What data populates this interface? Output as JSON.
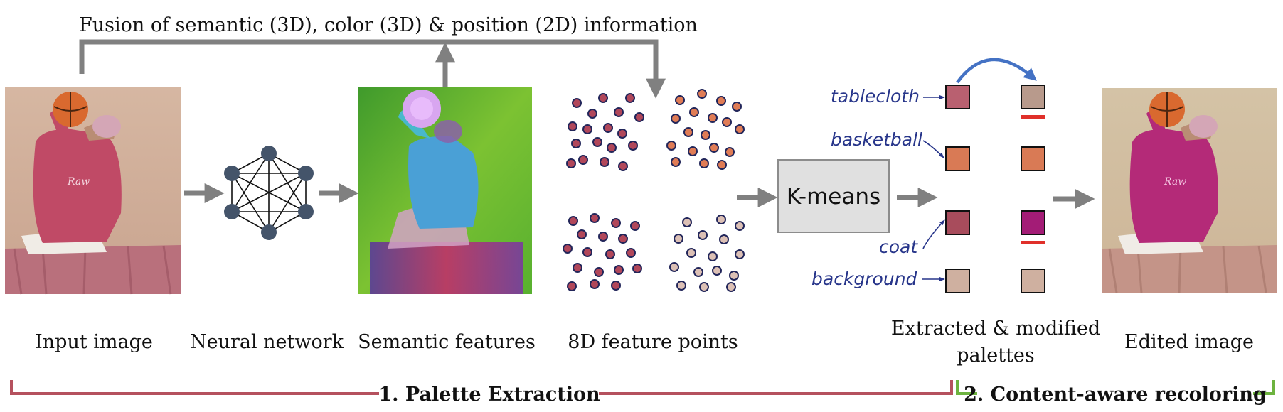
{
  "fusion_label": "Fusion of semantic (3D), color (3D) & position (2D) information",
  "captions": {
    "input": "Input image",
    "network": "Neural network",
    "semantic": "Semantic features",
    "points": "8D feature points",
    "palettes_line1": "Extracted & modified",
    "palettes_line2": "palettes",
    "edited": "Edited image"
  },
  "kmeans_label": "K-means",
  "palette": {
    "labels": [
      "tablecloth",
      "basketball",
      "coat",
      "background"
    ],
    "extracted": [
      "#b96070",
      "#d97a55",
      "#a84c5c",
      "#cfb0a0"
    ],
    "modified": [
      "#b89a8c",
      "#d97a55",
      "#a31c76",
      "#cfb0a0"
    ],
    "modified_marks": [
      true,
      false,
      true,
      false
    ]
  },
  "stages": {
    "extraction": "1. Palette Extraction",
    "recoloring": "2. Content-aware recoloring"
  },
  "colors": {
    "arrow": "#808080",
    "extraction_line": "#b5515e",
    "recoloring_line": "#6db33f",
    "swap_arrow": "#4472c4",
    "node": "#44546a",
    "mark": "#e0302a"
  }
}
